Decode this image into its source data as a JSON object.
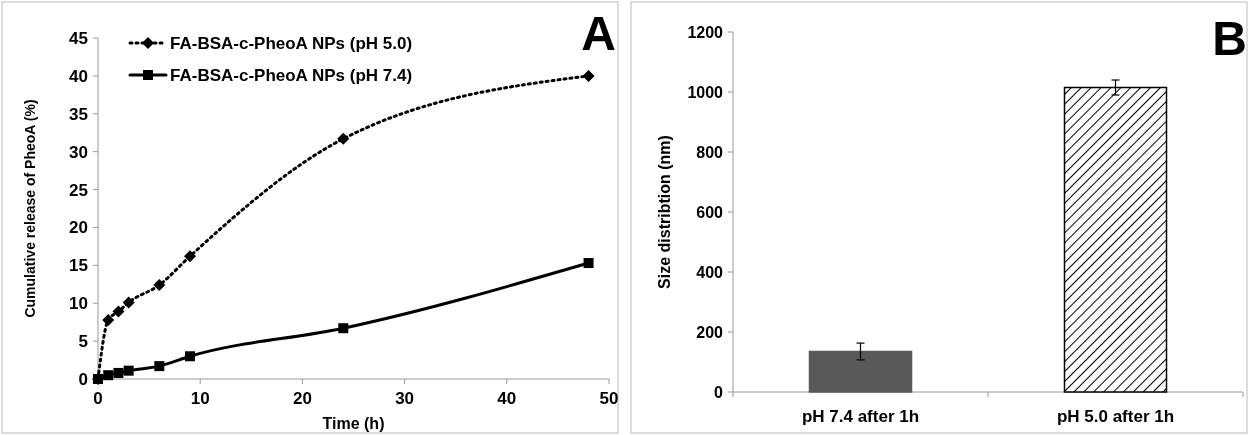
{
  "chart_data": [
    {
      "type": "line",
      "title": "A",
      "xlabel": "Time (h)",
      "ylabel": "Cumulative release of PheoA (%)",
      "xlim": [
        0,
        50
      ],
      "xticks": [
        0,
        10,
        20,
        30,
        40,
        50
      ],
      "ylim": [
        0,
        45
      ],
      "yticks": [
        0,
        5,
        10,
        15,
        20,
        25,
        30,
        35,
        40,
        45
      ],
      "legend": "top left",
      "x": [
        0,
        1,
        2,
        3,
        6,
        9,
        24,
        48
      ],
      "series": [
        {
          "name": "FA-BSA-c-PheoA NPs (pH 5.0)",
          "color": "#000000",
          "marker": "diamond",
          "line_style": "dotted",
          "values": [
            0,
            7.8,
            8.9,
            10.1,
            12.4,
            16.2,
            31.7,
            40.0
          ]
        },
        {
          "name": "FA-BSA-c-PheoA NPs (pH 7.4)",
          "color": "#000000",
          "marker": "square",
          "line_style": "solid",
          "values": [
            0,
            0.5,
            0.8,
            1.1,
            1.7,
            3.0,
            6.7,
            15.3
          ]
        }
      ]
    },
    {
      "type": "bar",
      "title": "B",
      "ylabel": "Size distribtion (nm)",
      "categories": [
        "pH 7.4 after 1h",
        "pH 5.0 after 1h"
      ],
      "ylim": [
        0,
        1200
      ],
      "yticks": [
        0,
        200,
        400,
        600,
        800,
        1000,
        1200
      ],
      "values": [
        135,
        1015
      ],
      "errors": [
        28,
        25
      ],
      "colors": [
        "#595959",
        "#000000"
      ]
    }
  ]
}
